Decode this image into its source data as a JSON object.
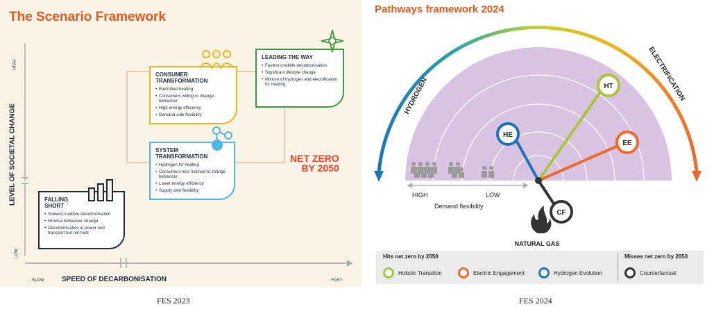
{
  "fes2023": {
    "title": "The Scenario Framework",
    "y_axis_label": "LEVEL OF SOCIETAL CHANGE",
    "y_high": "HIGH",
    "y_low": "LOW",
    "x_axis_label": "SPEED OF DECARBONISATION",
    "x_slow": "SLOW",
    "x_fast": "FAST",
    "net_zero": [
      "NET ZERO",
      "BY 2050"
    ],
    "scenarios": {
      "consumer": {
        "title": [
          "CONSUMER",
          "TRANSFORMATION"
        ],
        "color": "#f2b41b",
        "bullets": [
          "Electrified heating",
          "Consumers willing to change behaviour",
          "High energy efficiency",
          "Demand side flexibility"
        ]
      },
      "leading": {
        "title": [
          "LEADING THE WAY"
        ],
        "color": "#3c9a3c",
        "bullets": [
          "Fastest credible decarbonisation",
          "Significant lifestyle change",
          "Mixture of hydrogen and electrification for heating"
        ]
      },
      "system": {
        "title": [
          "SYSTEM",
          "TRANSFORMATION"
        ],
        "color": "#4fb4e6",
        "bullets": [
          "Hydrogen for heating",
          "Consumers less inclined to change behaviour",
          "Lower energy efficiency",
          "Supply side flexibility"
        ]
      },
      "falling": {
        "title": [
          "FALLING",
          "SHORT"
        ],
        "color": "#1d2a3a",
        "bullets": [
          "Slowest credible decarbonisation",
          "Minimal behaviour change",
          "Decarbonisation in power and transport but not heat"
        ]
      }
    }
  },
  "fes2024": {
    "title": "Pathways framework 2024",
    "arc_left": "HYDROGEN",
    "arc_right": "ELECTRIFICATION",
    "demand_high": "HIGH",
    "demand_low": "LOW",
    "demand_label": "Demand flexibility",
    "natural_gas": "NATURAL GAS",
    "markers": {
      "HT": {
        "label": "HT",
        "color": "#a7c63a"
      },
      "EE": {
        "label": "EE",
        "color": "#ee6a2a"
      },
      "HE": {
        "label": "HE",
        "color": "#1f73b7"
      },
      "CF": {
        "label": "CF",
        "color": "#333333"
      }
    },
    "legend": {
      "hits": "Hits net zero by 2050",
      "misses": "Misses net zero by 2050",
      "items": [
        {
          "name": "Holistic Transition",
          "color": "#a7c63a"
        },
        {
          "name": "Electric Engagement",
          "color": "#ee6a2a"
        },
        {
          "name": "Hydrogen Evolution",
          "color": "#1f73b7"
        },
        {
          "name": "Counterfactual",
          "color": "#333333"
        }
      ]
    }
  },
  "captions": {
    "left": "FES 2023",
    "right": "FES 2024"
  }
}
